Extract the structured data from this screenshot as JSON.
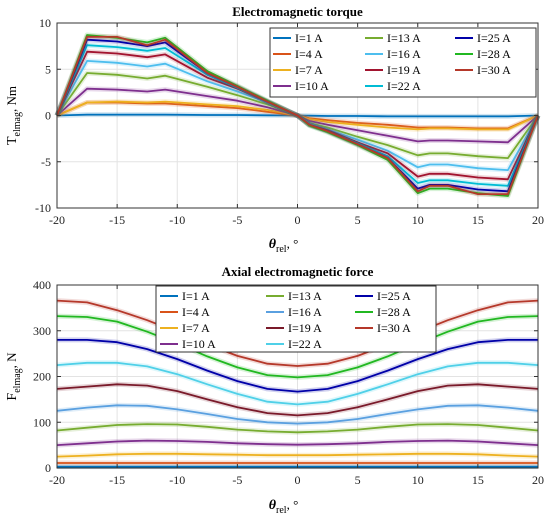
{
  "chart_data": [
    {
      "type": "line",
      "title": "Electromagnetic torque",
      "xlabel": {
        "symbol": "θ",
        "sub": "rel",
        "unit": ", °"
      },
      "ylabel": {
        "symbol": "T",
        "sub": "elmag",
        "unit": ", Nm"
      },
      "xlim": [
        -20,
        20
      ],
      "ylim": [
        -10,
        10
      ],
      "xticks": [
        -20,
        -15,
        -10,
        -5,
        0,
        5,
        10,
        15,
        20
      ],
      "yticks": [
        -10,
        -5,
        0,
        5,
        10
      ],
      "grid": true,
      "legend": "top-right",
      "x": [
        -20,
        -17.5,
        -15,
        -12.5,
        -11,
        -7.5,
        -5,
        -2.5,
        0,
        1,
        2.5,
        5,
        7.5,
        10,
        11,
        12.5,
        15,
        17.5,
        20
      ],
      "series": [
        {
          "name": "I=1 A",
          "color": "#0072bd",
          "values": [
            0,
            0.1,
            0.1,
            0.1,
            0.1,
            0.05,
            0.05,
            0.02,
            0,
            -0.02,
            -0.05,
            -0.05,
            -0.1,
            -0.1,
            -0.1,
            -0.1,
            -0.1,
            -0.1,
            0
          ]
        },
        {
          "name": "I=4 A",
          "color": "#d95319",
          "values": [
            0,
            1.4,
            1.4,
            1.3,
            1.3,
            1.0,
            0.8,
            0.4,
            0,
            -0.3,
            -0.5,
            -0.8,
            -1.0,
            -1.3,
            -1.3,
            -1.3,
            -1.4,
            -1.4,
            0
          ]
        },
        {
          "name": "I=7 A",
          "color": "#edb120",
          "values": [
            0,
            1.4,
            1.5,
            1.4,
            1.5,
            1.2,
            1.0,
            0.6,
            0,
            -0.4,
            -0.7,
            -1.0,
            -1.3,
            -1.5,
            -1.4,
            -1.4,
            -1.5,
            -1.5,
            0
          ]
        },
        {
          "name": "I=10 A",
          "color": "#7e2f8e",
          "values": [
            0,
            2.9,
            2.8,
            2.6,
            2.8,
            2.1,
            1.6,
            0.9,
            0,
            -0.6,
            -1.0,
            -1.6,
            -2.2,
            -2.8,
            -2.7,
            -2.7,
            -2.8,
            -2.9,
            0
          ]
        },
        {
          "name": "I=13 A",
          "color": "#77ac30",
          "values": [
            0,
            4.6,
            4.4,
            4.0,
            4.3,
            3.1,
            2.2,
            1.2,
            0,
            -0.8,
            -1.3,
            -2.3,
            -3.2,
            -4.3,
            -4.1,
            -4.1,
            -4.4,
            -4.6,
            0
          ]
        },
        {
          "name": "I=16 A",
          "color": "#4dbeee",
          "values": [
            0,
            5.9,
            5.7,
            5.3,
            5.6,
            3.7,
            2.6,
            1.4,
            0,
            -0.9,
            -1.5,
            -2.6,
            -3.8,
            -5.6,
            -5.3,
            -5.3,
            -5.7,
            -5.9,
            0
          ]
        },
        {
          "name": "I=19 A",
          "color": "#a2142f",
          "values": [
            0,
            6.9,
            6.7,
            6.3,
            6.6,
            4.1,
            2.9,
            1.5,
            0,
            -1.0,
            -1.6,
            -2.9,
            -4.1,
            -6.6,
            -6.3,
            -6.3,
            -6.7,
            -6.9,
            0
          ]
        },
        {
          "name": "I=22 A",
          "color": "#00bcd4",
          "values": [
            0,
            7.6,
            7.4,
            7.0,
            7.3,
            4.4,
            3.0,
            1.5,
            0,
            -1.0,
            -1.7,
            -3.0,
            -4.4,
            -7.3,
            -7.0,
            -7.0,
            -7.4,
            -7.6,
            0
          ]
        },
        {
          "name": "I=25 A",
          "color": "#0000a8",
          "values": [
            0,
            8.2,
            8.0,
            7.5,
            7.9,
            4.6,
            3.1,
            1.5,
            0,
            -1.0,
            -1.7,
            -3.1,
            -4.6,
            -7.9,
            -7.5,
            -7.5,
            -8.0,
            -8.2,
            0
          ]
        },
        {
          "name": "I=28 A",
          "color": "#21b821",
          "values": [
            0,
            8.7,
            8.4,
            7.9,
            8.4,
            4.8,
            3.2,
            1.6,
            0,
            -1.1,
            -1.8,
            -3.2,
            -4.8,
            -8.4,
            -7.9,
            -7.9,
            -8.4,
            -8.7,
            0
          ]
        },
        {
          "name": "I=30 A",
          "color": "#b5382a",
          "values": [
            0,
            8.5,
            8.5,
            7.6,
            8.2,
            4.6,
            3.1,
            1.5,
            0,
            -1.0,
            -1.7,
            -3.1,
            -4.6,
            -8.2,
            -7.6,
            -7.6,
            -8.5,
            -8.5,
            0
          ]
        }
      ]
    },
    {
      "type": "line",
      "title": "Axial electromagnetic force",
      "xlabel": {
        "symbol": "θ",
        "sub": "rel",
        "unit": ", °"
      },
      "ylabel": {
        "symbol": "F",
        "sub": "elmag",
        "unit": ", N"
      },
      "xlim": [
        -20,
        20
      ],
      "ylim": [
        0,
        400
      ],
      "xticks": [
        -20,
        -15,
        -10,
        -5,
        0,
        5,
        10,
        15,
        20
      ],
      "yticks": [
        0,
        100,
        200,
        300,
        400
      ],
      "grid": true,
      "legend": "top-center",
      "x": [
        -20,
        -17.5,
        -15,
        -12.5,
        -10,
        -7.5,
        -5,
        -2.5,
        0,
        2.5,
        5,
        7.5,
        10,
        12.5,
        15,
        17.5,
        20
      ],
      "series": [
        {
          "name": "I=1 A",
          "color": "#0072bd",
          "values": [
            3,
            3,
            3,
            3,
            3,
            3,
            3,
            3,
            3,
            3,
            3,
            3,
            3,
            3,
            3,
            3,
            3
          ]
        },
        {
          "name": "I=4 A",
          "color": "#d95319",
          "values": [
            11,
            11,
            11,
            11,
            11,
            11,
            11,
            11,
            11,
            11,
            11,
            11,
            11,
            11,
            11,
            11,
            11
          ]
        },
        {
          "name": "I=7 A",
          "color": "#edb120",
          "values": [
            25,
            27,
            30,
            31,
            31,
            30,
            29,
            28,
            28,
            28,
            29,
            30,
            31,
            31,
            30,
            27,
            25
          ]
        },
        {
          "name": "I=10 A",
          "color": "#7e2f8e",
          "values": [
            50,
            54,
            58,
            60,
            59,
            57,
            54,
            52,
            51,
            52,
            54,
            57,
            59,
            60,
            58,
            54,
            50
          ]
        },
        {
          "name": "I=13 A",
          "color": "#77ac30",
          "values": [
            82,
            88,
            94,
            96,
            95,
            90,
            84,
            80,
            78,
            80,
            84,
            90,
            95,
            96,
            94,
            88,
            82
          ]
        },
        {
          "name": "I=16 A",
          "color": "#5aa0e0",
          "values": [
            125,
            132,
            137,
            136,
            128,
            118,
            107,
            100,
            97,
            100,
            107,
            118,
            128,
            136,
            137,
            132,
            125
          ]
        },
        {
          "name": "I=19 A",
          "color": "#7a1a2a",
          "values": [
            173,
            178,
            183,
            180,
            168,
            150,
            133,
            120,
            115,
            120,
            133,
            150,
            168,
            180,
            183,
            178,
            173
          ]
        },
        {
          "name": "I=22 A",
          "color": "#4fd0e8",
          "values": [
            225,
            230,
            230,
            222,
            205,
            183,
            162,
            145,
            139,
            145,
            162,
            183,
            205,
            222,
            230,
            230,
            225
          ]
        },
        {
          "name": "I=25 A",
          "color": "#0000a8",
          "values": [
            280,
            280,
            275,
            260,
            238,
            213,
            190,
            173,
            167,
            173,
            190,
            213,
            238,
            260,
            275,
            280,
            280
          ]
        },
        {
          "name": "I=28 A",
          "color": "#21b821",
          "values": [
            332,
            330,
            320,
            298,
            272,
            244,
            220,
            203,
            198,
            203,
            220,
            244,
            272,
            298,
            320,
            330,
            332
          ]
        },
        {
          "name": "I=30 A",
          "color": "#b5382a",
          "values": [
            366,
            362,
            345,
            323,
            297,
            270,
            245,
            228,
            223,
            228,
            245,
            270,
            297,
            323,
            345,
            362,
            366
          ]
        }
      ]
    }
  ]
}
